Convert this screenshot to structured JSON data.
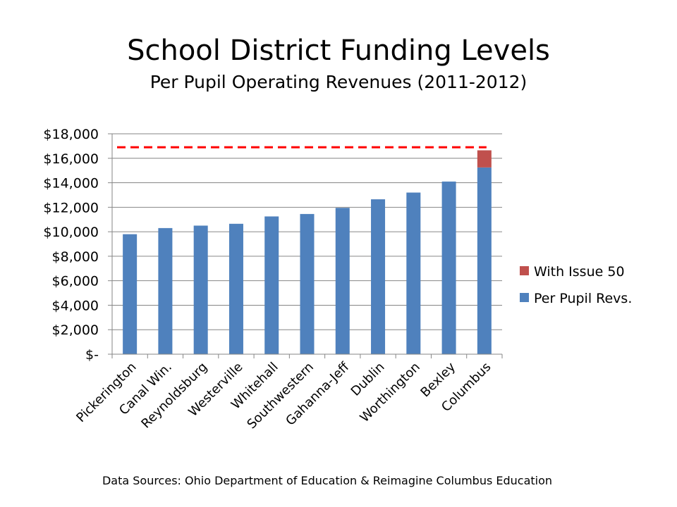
{
  "chart_data": {
    "type": "bar",
    "stacked": true,
    "title": "School District Funding Levels",
    "subtitle": "Per Pupil Operating Revenues (2011-2012)",
    "xlabel": "",
    "ylabel": "",
    "ylim": [
      0,
      18000
    ],
    "yticks": [
      0,
      2000,
      4000,
      6000,
      8000,
      10000,
      12000,
      14000,
      16000,
      18000
    ],
    "ytick_labels": [
      "$-",
      "$2,000",
      "$4,000",
      "$6,000",
      "$8,000",
      "$10,000",
      "$12,000",
      "$14,000",
      "$16,000",
      "$18,000"
    ],
    "grid": true,
    "legend_position": "right",
    "categories": [
      "Pickerington",
      "Canal Win.",
      "Reynoldsburg",
      "Westerville",
      "Whitehall",
      "Southwestern",
      "Gahanna-Jeff",
      "Dublin",
      "Worthington",
      "Bexley",
      "Columbus"
    ],
    "series": [
      {
        "name": "Per Pupil Revs.",
        "color": "#4F81BD",
        "values": [
          9800,
          10300,
          10500,
          10650,
          11250,
          11450,
          11950,
          12650,
          13200,
          14100,
          15250
        ]
      },
      {
        "name": "With Issue 50",
        "color": "#C0504D",
        "values": [
          0,
          0,
          0,
          0,
          0,
          0,
          0,
          0,
          0,
          0,
          1400
        ]
      }
    ],
    "reference_line": {
      "value": 16900,
      "color": "#FF0000",
      "style": "dashed"
    }
  },
  "source_text": "Data Sources: Ohio Department  of Education & Reimagine Columbus Education"
}
